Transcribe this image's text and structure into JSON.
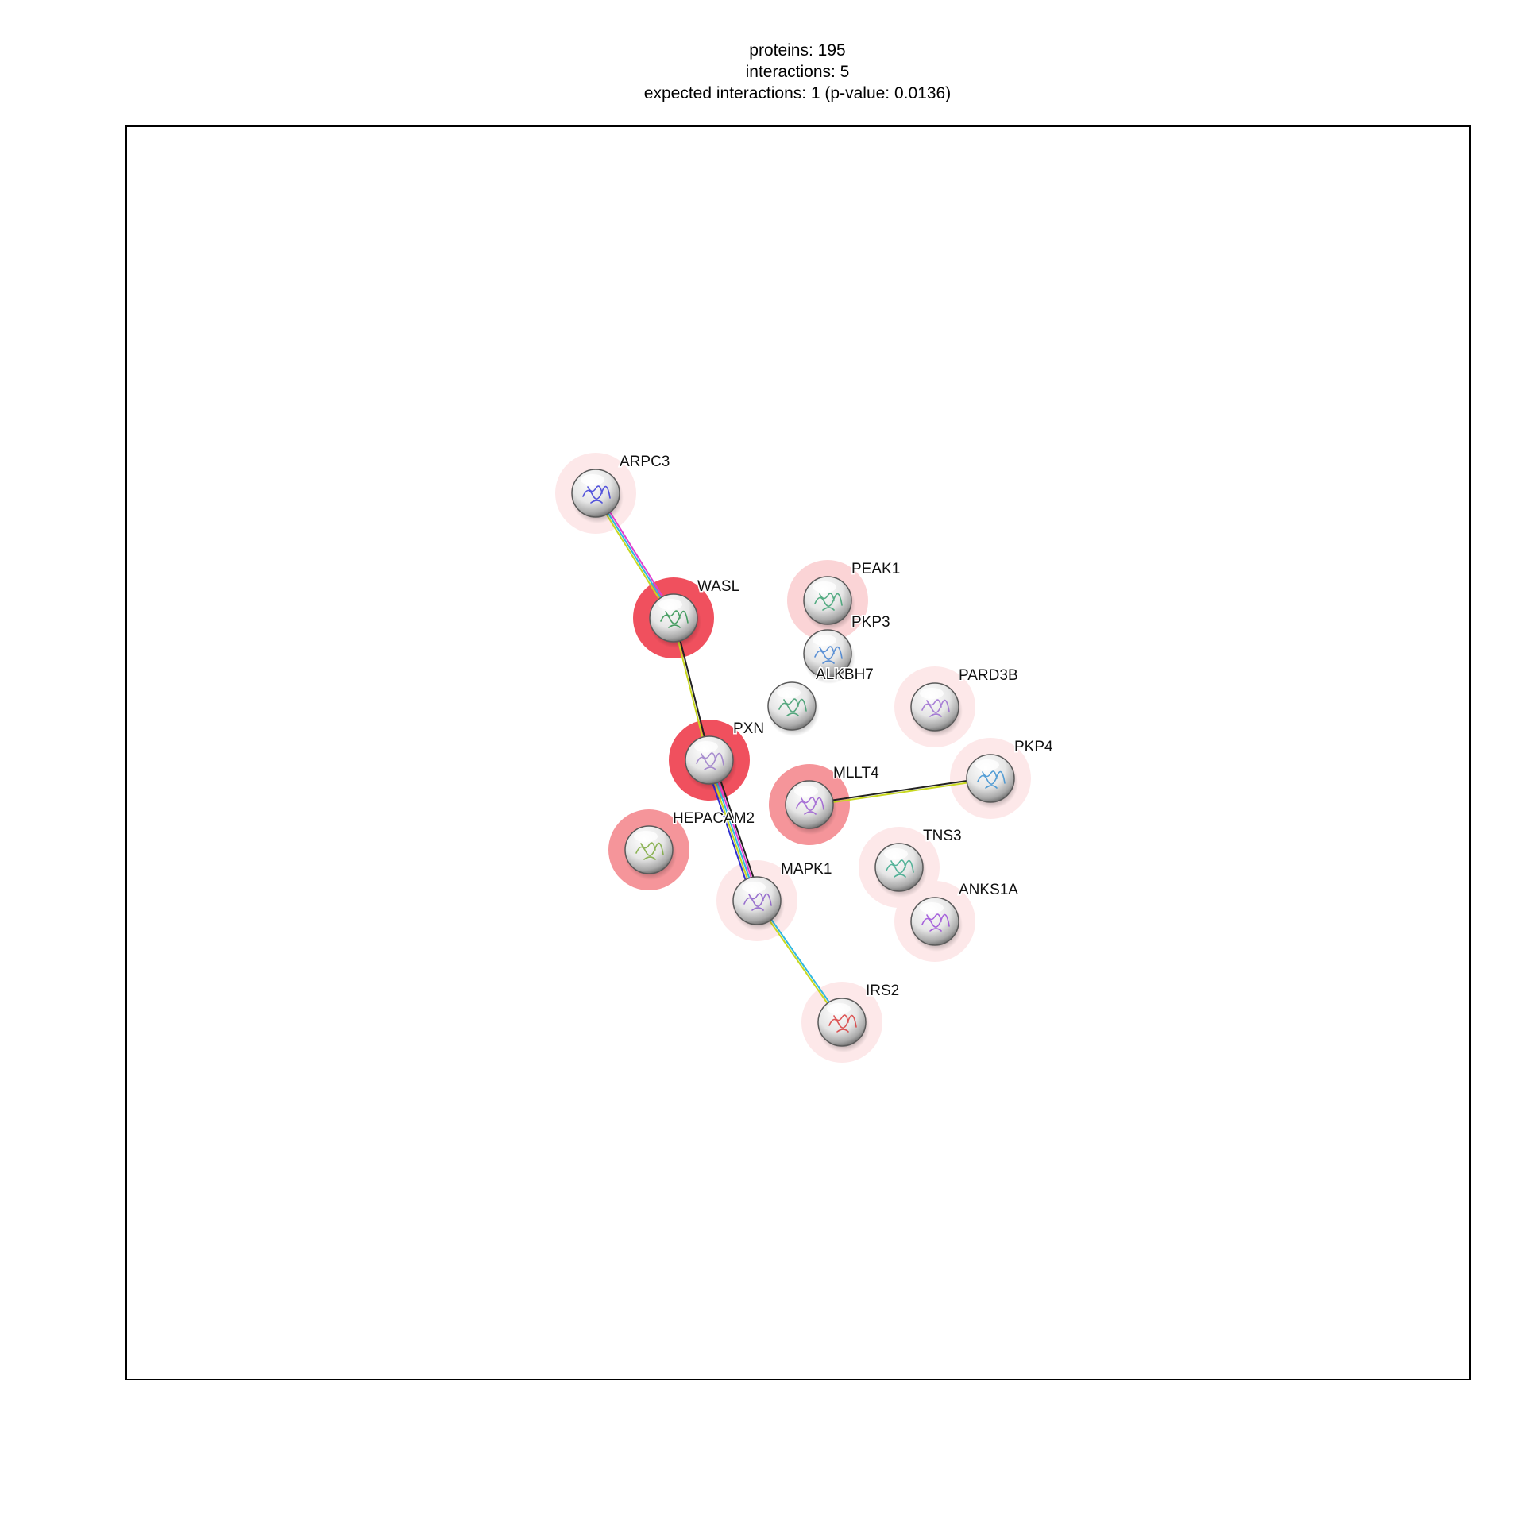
{
  "summary": {
    "proteins": "proteins: 195",
    "interactions": "interactions: 5",
    "expected": "expected interactions: 1 (p-value: 0.0136)"
  },
  "nodes": [
    {
      "id": "ARPC3",
      "label": "ARPC3",
      "halo": "faint",
      "structure_color": "#3a3ad8"
    },
    {
      "id": "WASL",
      "label": "WASL",
      "halo": "strong",
      "structure_color": "#2a8f4a"
    },
    {
      "id": "PEAK1",
      "label": "PEAK1",
      "halo": "light",
      "structure_color": "#3aa070"
    },
    {
      "id": "PKP3",
      "label": "PKP3",
      "halo": "none",
      "structure_color": "#3f7fd0"
    },
    {
      "id": "ALKBH7",
      "label": "ALKBH7",
      "halo": "none",
      "structure_color": "#3a9a6a"
    },
    {
      "id": "PARD3B",
      "label": "PARD3B",
      "halo": "faint",
      "structure_color": "#9a6ad0"
    },
    {
      "id": "PXN",
      "label": "PXN",
      "halo": "strong",
      "structure_color": "#9a7ac8"
    },
    {
      "id": "PKP4",
      "label": "PKP4",
      "halo": "faint",
      "structure_color": "#3a8fd0"
    },
    {
      "id": "MLLT4",
      "label": "MLLT4",
      "halo": "medium",
      "structure_color": "#9a5ad0"
    },
    {
      "id": "HEPACAM2",
      "label": "HEPACAM2",
      "halo": "medium",
      "structure_color": "#7aa83a"
    },
    {
      "id": "TNS3",
      "label": "TNS3",
      "halo": "faint",
      "structure_color": "#3aa88a"
    },
    {
      "id": "MAPK1",
      "label": "MAPK1",
      "halo": "faint",
      "structure_color": "#8a5ac8"
    },
    {
      "id": "ANKS1A",
      "label": "ANKS1A",
      "halo": "faint",
      "structure_color": "#9a4ad8"
    },
    {
      "id": "IRS2",
      "label": "IRS2",
      "halo": "faint",
      "structure_color": "#d83a3a"
    }
  ],
  "edges": [
    {
      "source": "ARPC3",
      "target": "WASL",
      "colors": [
        "#e040d0",
        "#30b8e0",
        "#c8d820"
      ]
    },
    {
      "source": "WASL",
      "target": "PXN",
      "colors": [
        "#222222",
        "#c8d820"
      ]
    },
    {
      "source": "PXN",
      "target": "MAPK1",
      "colors": [
        "#222222",
        "#e040d0",
        "#30b8e0",
        "#c8d820",
        "#3030d0"
      ]
    },
    {
      "source": "MAPK1",
      "target": "IRS2",
      "colors": [
        "#30b8e0",
        "#c8d820"
      ]
    },
    {
      "source": "MLLT4",
      "target": "PKP4",
      "colors": [
        "#222222",
        "#c8d820"
      ]
    }
  ],
  "halo_colors": {
    "strong": "#f0505e",
    "medium": "#f5959a",
    "light": "#fbd4d6",
    "faint": "#fde8e9"
  }
}
